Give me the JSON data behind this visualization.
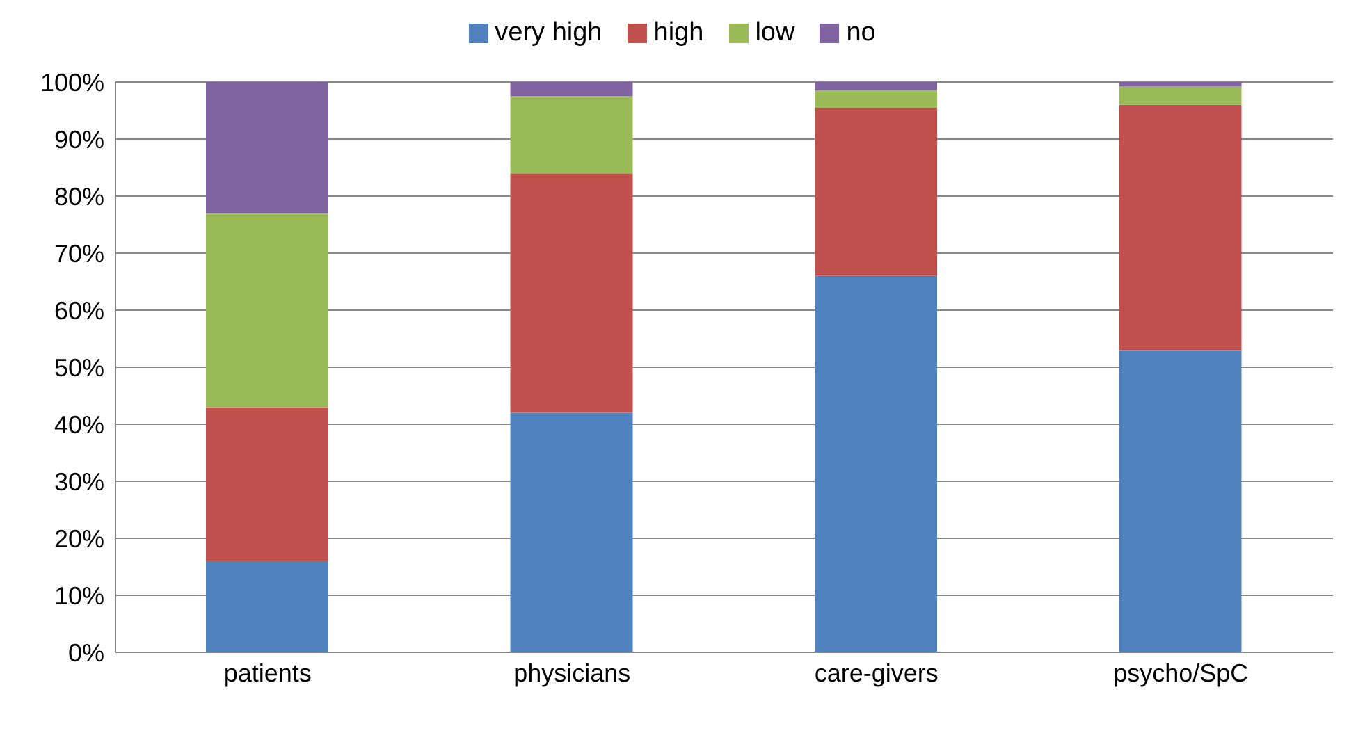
{
  "chart_data": {
    "type": "bar",
    "stacked": true,
    "categories": [
      "patients",
      "physicians",
      "care-givers",
      "psycho/SpC"
    ],
    "series": [
      {
        "name": "very high",
        "color": "#4f81bd",
        "values": [
          16,
          42,
          66,
          53
        ]
      },
      {
        "name": "high",
        "color": "#c0504d",
        "values": [
          27,
          42,
          29.5,
          43
        ]
      },
      {
        "name": "low",
        "color": "#9bbb59",
        "values": [
          34,
          13.5,
          3,
          3.2
        ]
      },
      {
        "name": "no",
        "color": "#8064a2",
        "values": [
          23,
          2.5,
          1.5,
          0.8
        ]
      }
    ],
    "ylim": [
      0,
      100
    ],
    "yticks": [
      {
        "value": 0,
        "label": "0%"
      },
      {
        "value": 10,
        "label": "10%"
      },
      {
        "value": 20,
        "label": "20%"
      },
      {
        "value": 30,
        "label": "30%"
      },
      {
        "value": 40,
        "label": "40%"
      },
      {
        "value": 50,
        "label": "50%"
      },
      {
        "value": 60,
        "label": "60%"
      },
      {
        "value": 70,
        "label": "70%"
      },
      {
        "value": 80,
        "label": "80%"
      },
      {
        "value": 90,
        "label": "90%"
      },
      {
        "value": 100,
        "label": "100%"
      }
    ],
    "grid": "y",
    "legend": "top"
  }
}
